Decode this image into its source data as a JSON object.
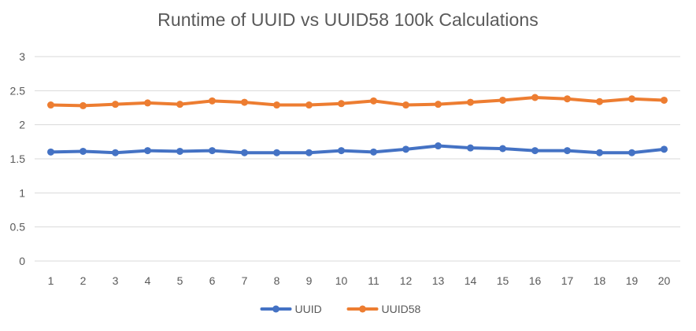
{
  "chart_data": {
    "type": "line",
    "title": "Runtime of UUID vs UUID58 100k Calculations",
    "xlabel": "",
    "ylabel": "",
    "categories": [
      "1",
      "2",
      "3",
      "4",
      "5",
      "6",
      "7",
      "8",
      "9",
      "10",
      "11",
      "12",
      "13",
      "14",
      "15",
      "16",
      "17",
      "18",
      "19",
      "20"
    ],
    "ylim": [
      0,
      3
    ],
    "yticks": [
      "0",
      "0.5",
      "1",
      "1.5",
      "2",
      "2.5",
      "3"
    ],
    "grid": "horizontal",
    "legend": "bottom",
    "series": [
      {
        "name": "UUID",
        "color": "#4472c4",
        "values": [
          1.6,
          1.61,
          1.59,
          1.62,
          1.61,
          1.62,
          1.59,
          1.59,
          1.59,
          1.62,
          1.6,
          1.64,
          1.69,
          1.66,
          1.65,
          1.62,
          1.62,
          1.59,
          1.59,
          1.64
        ]
      },
      {
        "name": "UUID58",
        "color": "#ed7d31",
        "values": [
          2.29,
          2.28,
          2.3,
          2.32,
          2.3,
          2.35,
          2.33,
          2.29,
          2.29,
          2.31,
          2.35,
          2.29,
          2.3,
          2.33,
          2.36,
          2.4,
          2.38,
          2.34,
          2.38,
          2.36
        ]
      }
    ]
  }
}
